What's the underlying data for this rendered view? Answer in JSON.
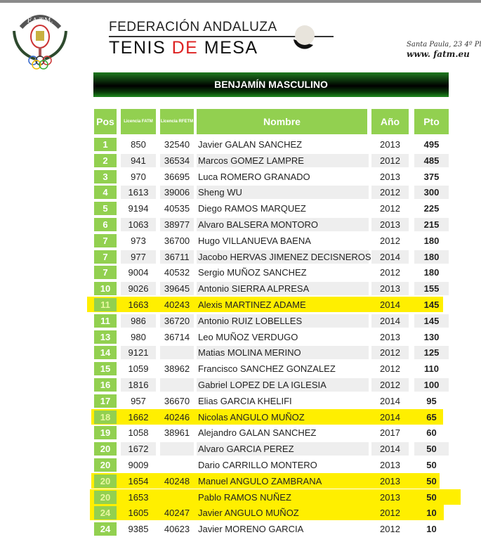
{
  "header": {
    "logo_text": "F.A.T.M.",
    "federation_line1": "FEDERACIÓN ANDALUZA",
    "federation_line2_a": "TENIS ",
    "federation_line2_b": "DE",
    "federation_line2_c": " MESA",
    "address": "Santa Paula, 23  4º Pl",
    "website": "www. fatm.eu"
  },
  "title": "BENJAMÍN MASCULINO",
  "colors": {
    "green": "#92d050",
    "highlight": "#ffef00",
    "red": "#d22222"
  },
  "columns": {
    "pos": "Pos",
    "lic_fatm": "Licencia FATM",
    "lic_rfetm": "Licencia RFETM",
    "nombre": "Nombre",
    "anio": "Año",
    "pto": "Pto"
  },
  "rows": [
    {
      "pos": "1",
      "fatm": "850",
      "rfetm": "32540",
      "nombre": "Javier GALAN SANCHEZ",
      "anio": "2013",
      "pto": "495",
      "highlighted": false
    },
    {
      "pos": "2",
      "fatm": "941",
      "rfetm": "36534",
      "nombre": "Marcos GOMEZ LAMPRE",
      "anio": "2012",
      "pto": "485",
      "highlighted": false
    },
    {
      "pos": "3",
      "fatm": "970",
      "rfetm": "36695",
      "nombre": "Luca ROMERO GRANADO",
      "anio": "2013",
      "pto": "375",
      "highlighted": false
    },
    {
      "pos": "4",
      "fatm": "1613",
      "rfetm": "39006",
      "nombre": "Sheng WU",
      "anio": "2012",
      "pto": "300",
      "highlighted": false
    },
    {
      "pos": "5",
      "fatm": "9194",
      "rfetm": "40535",
      "nombre": "Diego RAMOS MARQUEZ",
      "anio": "2012",
      "pto": "225",
      "highlighted": false
    },
    {
      "pos": "6",
      "fatm": "1063",
      "rfetm": "38977",
      "nombre": "Alvaro BALSERA MONTORO",
      "anio": "2013",
      "pto": "215",
      "highlighted": false
    },
    {
      "pos": "7",
      "fatm": "973",
      "rfetm": "36700",
      "nombre": "Hugo VILLANUEVA BAENA",
      "anio": "2012",
      "pto": "180",
      "highlighted": false
    },
    {
      "pos": "7",
      "fatm": "977",
      "rfetm": "36711",
      "nombre": "Jacobo HERVAS JIMENEZ DECISNEROS",
      "anio": "2014",
      "pto": "180",
      "highlighted": false
    },
    {
      "pos": "7",
      "fatm": "9004",
      "rfetm": "40532",
      "nombre": "Sergio MUÑOZ SANCHEZ",
      "anio": "2012",
      "pto": "180",
      "highlighted": false
    },
    {
      "pos": "10",
      "fatm": "9026",
      "rfetm": "39645",
      "nombre": "Antonio SIERRA ALPRESA",
      "anio": "2013",
      "pto": "155",
      "highlighted": false
    },
    {
      "pos": "11",
      "fatm": "1663",
      "rfetm": "40243",
      "nombre": "Alexis MARTINEZ ADAME",
      "anio": "2014",
      "pto": "145",
      "highlighted": true
    },
    {
      "pos": "11",
      "fatm": "986",
      "rfetm": "36720",
      "nombre": "Antonio RUIZ LOBELLES",
      "anio": "2014",
      "pto": "145",
      "highlighted": false
    },
    {
      "pos": "13",
      "fatm": "980",
      "rfetm": "36714",
      "nombre": "Leo MUÑOZ VERDUGO",
      "anio": "2013",
      "pto": "130",
      "highlighted": false
    },
    {
      "pos": "14",
      "fatm": "9121",
      "rfetm": "",
      "nombre": "Matias MOLINA MERINO",
      "anio": "2012",
      "pto": "125",
      "highlighted": false
    },
    {
      "pos": "15",
      "fatm": "1059",
      "rfetm": "38962",
      "nombre": "Francisco SANCHEZ GONZALEZ",
      "anio": "2012",
      "pto": "110",
      "highlighted": false
    },
    {
      "pos": "16",
      "fatm": "1816",
      "rfetm": "",
      "nombre": "Gabriel LOPEZ DE LA IGLESIA",
      "anio": "2012",
      "pto": "100",
      "highlighted": false
    },
    {
      "pos": "17",
      "fatm": "957",
      "rfetm": "36670",
      "nombre": "Elias GARCIA KHELIFI",
      "anio": "2014",
      "pto": "95",
      "highlighted": false
    },
    {
      "pos": "18",
      "fatm": "1662",
      "rfetm": "40246",
      "nombre": "Nicolas ANGULO MUÑOZ",
      "anio": "2014",
      "pto": "65",
      "highlighted": true
    },
    {
      "pos": "19",
      "fatm": "1058",
      "rfetm": "38961",
      "nombre": "Alejandro GALAN SANCHEZ",
      "anio": "2017",
      "pto": "60",
      "highlighted": false
    },
    {
      "pos": "20",
      "fatm": "1672",
      "rfetm": "",
      "nombre": "Alvaro GARCIA PEREZ",
      "anio": "2014",
      "pto": "50",
      "highlighted": false
    },
    {
      "pos": "20",
      "fatm": "9009",
      "rfetm": "",
      "nombre": "Dario CARRILLO MONTERO",
      "anio": "2013",
      "pto": "50",
      "highlighted": false
    },
    {
      "pos": "20",
      "fatm": "1654",
      "rfetm": "40248",
      "nombre": "Manuel ANGULO ZAMBRANA",
      "anio": "2013",
      "pto": "50",
      "highlighted": true
    },
    {
      "pos": "20",
      "fatm": "1653",
      "rfetm": "",
      "nombre": "Pablo RAMOS NUÑEZ",
      "anio": "2013",
      "pto": "50",
      "highlighted": true
    },
    {
      "pos": "24",
      "fatm": "1605",
      "rfetm": "40247",
      "nombre": "Javier ANGULO MUÑOZ",
      "anio": "2012",
      "pto": "10",
      "highlighted": true
    },
    {
      "pos": "24",
      "fatm": "9385",
      "rfetm": "40623",
      "nombre": "Javier MORENO GARCIA",
      "anio": "2012",
      "pto": "10",
      "highlighted": false
    }
  ]
}
